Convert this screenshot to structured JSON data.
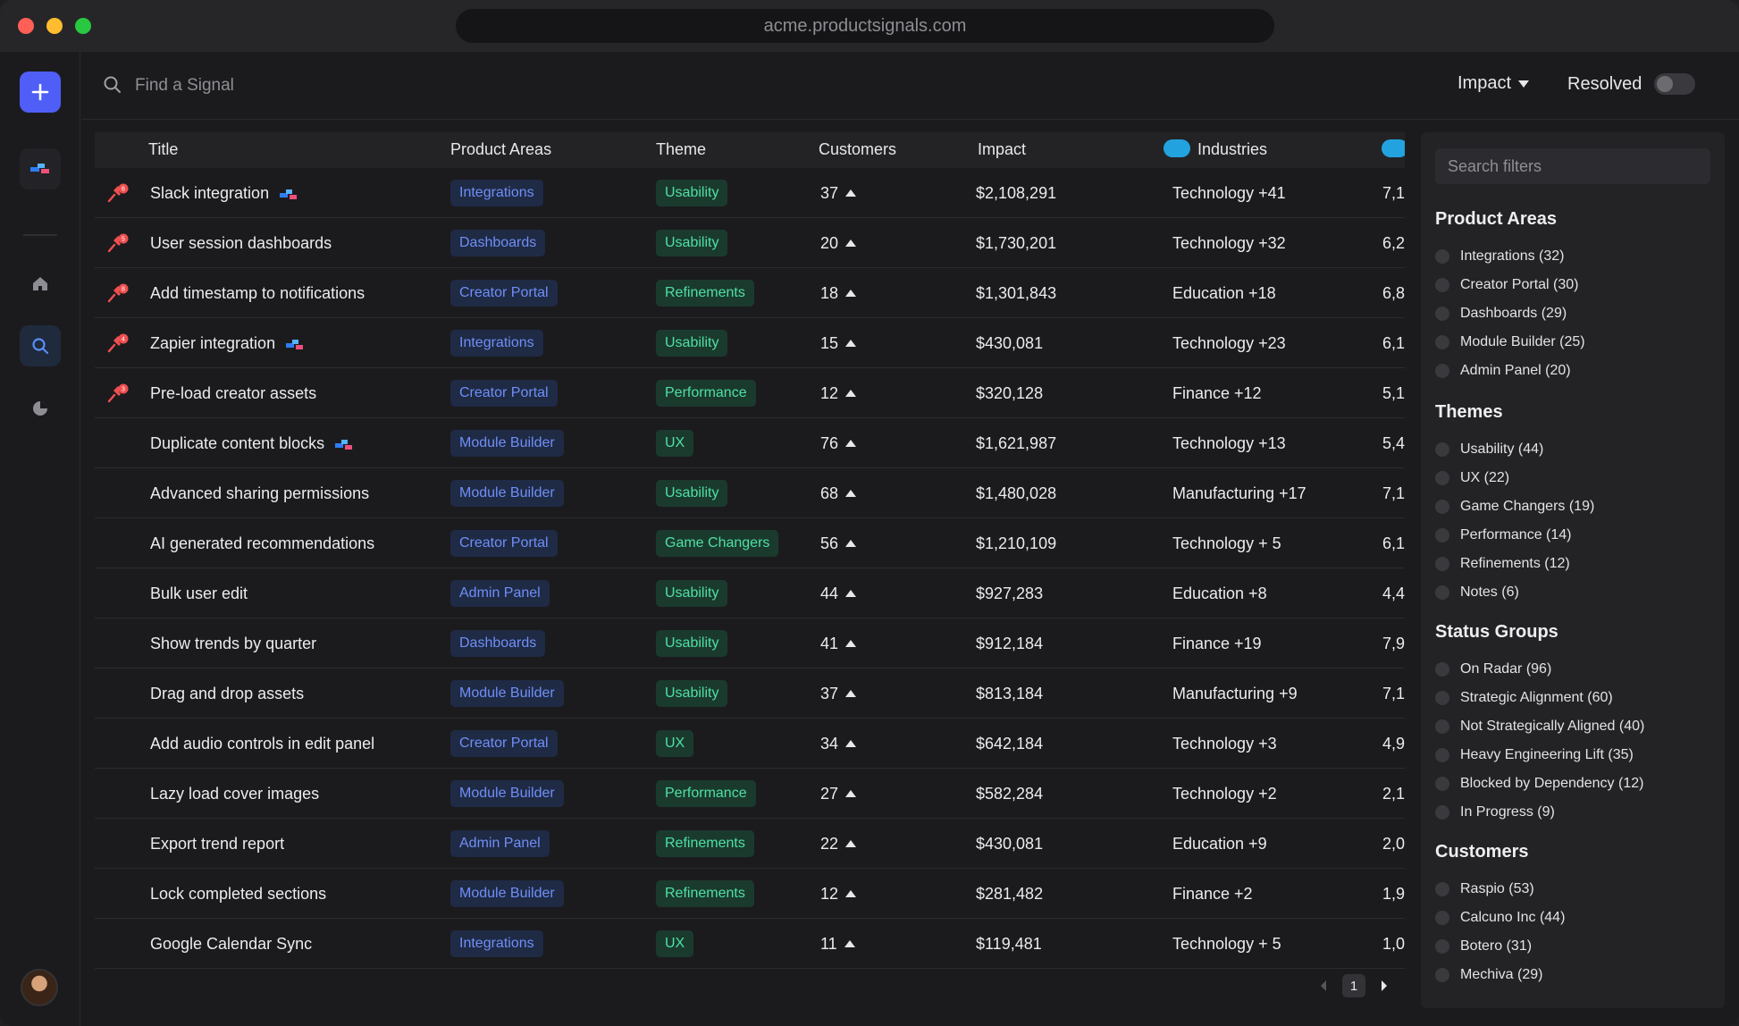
{
  "browser": {
    "url": "acme.productsignals.com"
  },
  "topbar": {
    "search_placeholder": "Find a Signal",
    "sort_label": "Impact",
    "resolved_label": "Resolved"
  },
  "table": {
    "columns": [
      "Title",
      "Product Areas",
      "Theme",
      "Customers",
      "Impact",
      "Industries"
    ],
    "rows": [
      {
        "title": "Slack integration",
        "pinned": true,
        "pin_count": "6",
        "jira": true,
        "area": "Integrations",
        "theme": "Usability",
        "customers": "37",
        "impact": "$2,108,291",
        "industries": "Technology +41",
        "extra": "7,1"
      },
      {
        "title": "User session dashboards",
        "pinned": true,
        "pin_count": "5",
        "jira": false,
        "area": "Dashboards",
        "theme": "Usability",
        "customers": "20",
        "impact": "$1,730,201",
        "industries": "Technology +32",
        "extra": "6,2"
      },
      {
        "title": "Add timestamp to notifications",
        "pinned": true,
        "pin_count": "8",
        "jira": false,
        "area": "Creator Portal",
        "theme": "Refinements",
        "customers": "18",
        "impact": "$1,301,843",
        "industries": "Education +18",
        "extra": "6,8"
      },
      {
        "title": "Zapier integration",
        "pinned": true,
        "pin_count": "4",
        "jira": true,
        "area": "Integrations",
        "theme": "Usability",
        "customers": "15",
        "impact": "$430,081",
        "industries": "Technology +23",
        "extra": "6,1"
      },
      {
        "title": "Pre-load creator assets",
        "pinned": true,
        "pin_count": "3",
        "jira": false,
        "area": "Creator Portal",
        "theme": "Performance",
        "customers": "12",
        "impact": "$320,128",
        "industries": "Finance +12",
        "extra": "5,1"
      },
      {
        "title": "Duplicate content blocks",
        "pinned": false,
        "pin_count": "",
        "jira": true,
        "area": "Module Builder",
        "theme": "UX",
        "customers": "76",
        "impact": "$1,621,987",
        "industries": "Technology +13",
        "extra": "5,4"
      },
      {
        "title": "Advanced sharing permissions",
        "pinned": false,
        "pin_count": "",
        "jira": false,
        "area": "Module Builder",
        "theme": "Usability",
        "customers": "68",
        "impact": "$1,480,028",
        "industries": "Manufacturing +17",
        "extra": "7,1"
      },
      {
        "title": "AI generated recommendations",
        "pinned": false,
        "pin_count": "",
        "jira": false,
        "area": "Creator Portal",
        "theme": "Game Changers",
        "customers": "56",
        "impact": "$1,210,109",
        "industries": "Technology + 5",
        "extra": "6,1"
      },
      {
        "title": "Bulk user edit",
        "pinned": false,
        "pin_count": "",
        "jira": false,
        "area": "Admin Panel",
        "theme": "Usability",
        "customers": "44",
        "impact": "$927,283",
        "industries": "Education +8",
        "extra": "4,4"
      },
      {
        "title": "Show trends by quarter",
        "pinned": false,
        "pin_count": "",
        "jira": false,
        "area": "Dashboards",
        "theme": "Usability",
        "customers": "41",
        "impact": "$912,184",
        "industries": "Finance +19",
        "extra": "7,9"
      },
      {
        "title": "Drag and drop assets",
        "pinned": false,
        "pin_count": "",
        "jira": false,
        "area": "Module Builder",
        "theme": "Usability",
        "customers": "37",
        "impact": "$813,184",
        "industries": "Manufacturing +9",
        "extra": "7,1"
      },
      {
        "title": "Add audio controls in edit panel",
        "pinned": false,
        "pin_count": "",
        "jira": false,
        "area": "Creator Portal",
        "theme": "UX",
        "customers": "34",
        "impact": "$642,184",
        "industries": "Technology +3",
        "extra": "4,9"
      },
      {
        "title": "Lazy load cover images",
        "pinned": false,
        "pin_count": "",
        "jira": false,
        "area": "Module Builder",
        "theme": "Performance",
        "customers": "27",
        "impact": "$582,284",
        "industries": "Technology +2",
        "extra": "2,1"
      },
      {
        "title": "Export trend report",
        "pinned": false,
        "pin_count": "",
        "jira": false,
        "area": "Admin Panel",
        "theme": "Refinements",
        "customers": "22",
        "impact": "$430,081",
        "industries": "Education +9",
        "extra": "2,0"
      },
      {
        "title": "Lock completed sections",
        "pinned": false,
        "pin_count": "",
        "jira": false,
        "area": "Module Builder",
        "theme": "Refinements",
        "customers": "12",
        "impact": "$281,482",
        "industries": "Finance +2",
        "extra": "1,9"
      },
      {
        "title": "Google Calendar Sync",
        "pinned": false,
        "pin_count": "",
        "jira": false,
        "area": "Integrations",
        "theme": "UX",
        "customers": "11",
        "impact": "$119,481",
        "industries": "Technology + 5",
        "extra": "1,0"
      }
    ],
    "pager": {
      "current_page": "1"
    }
  },
  "filters": {
    "search_placeholder": "Search filters",
    "groups": [
      {
        "title": "Product Areas",
        "items": [
          "Integrations (32)",
          "Creator Portal (30)",
          "Dashboards (29)",
          "Module Builder (25)",
          "Admin Panel (20)"
        ]
      },
      {
        "title": "Themes",
        "items": [
          "Usability (44)",
          "UX (22)",
          "Game Changers (19)",
          "Performance (14)",
          "Refinements (12)",
          "Notes (6)"
        ]
      },
      {
        "title": "Status Groups",
        "items": [
          "On Radar (96)",
          "Strategic Alignment (60)",
          "Not Strategically Aligned (40)",
          "Heavy Engineering Lift (35)",
          "Blocked by Dependency (12)",
          "In Progress (9)"
        ]
      },
      {
        "title": "Customers",
        "items": [
          "Raspio (53)",
          "Calcuno Inc (44)",
          "Botero (31)",
          "Mechiva (29)"
        ]
      }
    ]
  },
  "colors": {
    "accent": "#4f5ef7",
    "area_tag_text": "#6f8ff7",
    "theme_tag_text": "#4ee0a4",
    "pin": "#ef4f4f"
  },
  "icons": {
    "add": "plus-icon",
    "search": "search-icon",
    "home": "home-icon",
    "chart": "pie-chart-icon",
    "pin": "pin-icon",
    "jira": "jira-icon",
    "salesforce": "salesforce-icon"
  }
}
